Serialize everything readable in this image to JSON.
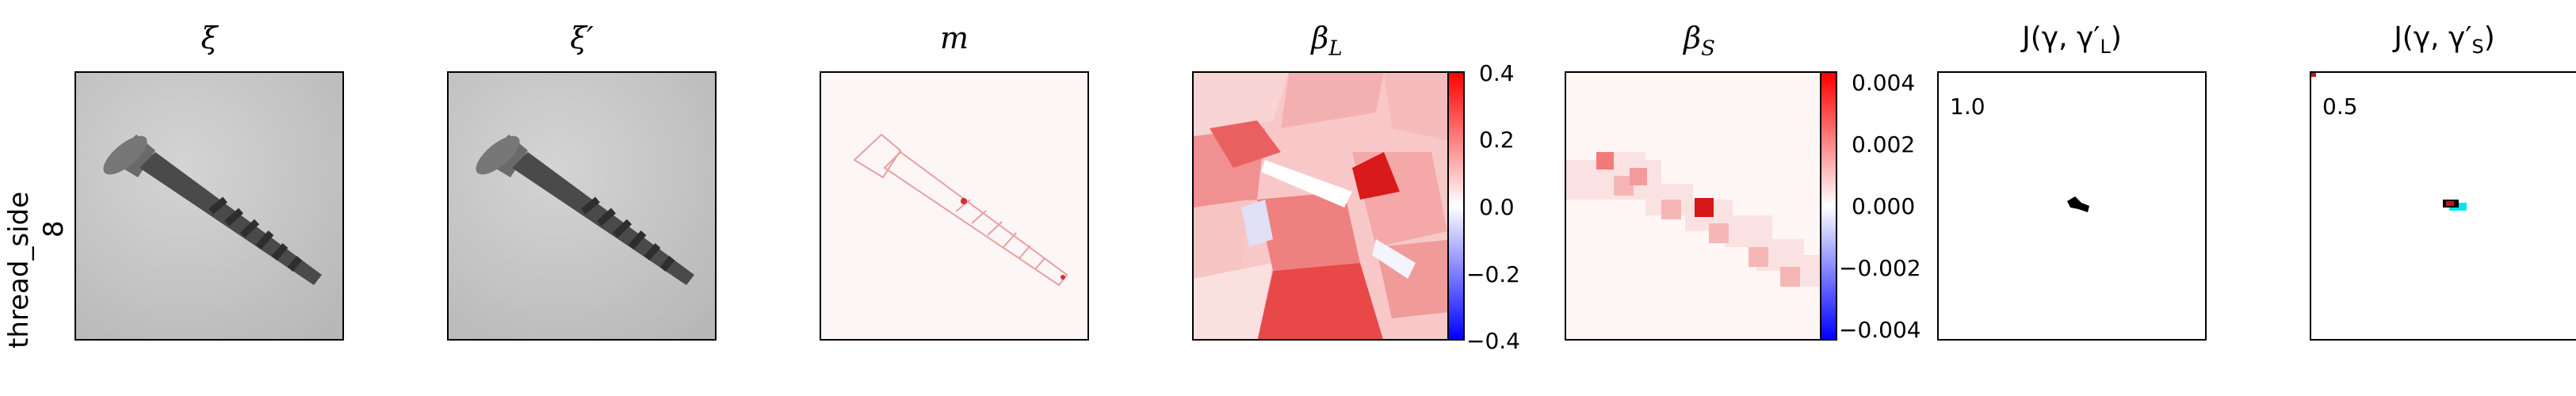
{
  "row_label": {
    "line1": "thread_side",
    "line2": "8"
  },
  "panels": [
    {
      "title": "ξ"
    },
    {
      "title": "ξ′"
    },
    {
      "title": "m"
    },
    {
      "title": "β",
      "sub": "L"
    },
    {
      "title": "β",
      "sub": "S"
    },
    {
      "title_prefix": "J(γ, γ′",
      "sub": "L",
      "title_suffix": ")",
      "value": "1.0"
    },
    {
      "title_prefix": "J(γ, γ′",
      "sub": "S",
      "title_suffix": ")",
      "value": "0.5"
    }
  ],
  "colorbars": [
    {
      "ticks": [
        "0.4",
        "0.2",
        "0.0",
        "−0.2",
        "−0.4"
      ],
      "range": [
        -0.4,
        0.4
      ]
    },
    {
      "ticks": [
        "0.004",
        "0.002",
        "0.000",
        "−0.002",
        "−0.004"
      ],
      "range": [
        -0.0045,
        0.0045
      ]
    }
  ],
  "colors": {
    "positive": "#ff0000",
    "negative": "#0000ff",
    "neutral": "#ffffff",
    "overlap_cyan": "#00e5ee"
  }
}
